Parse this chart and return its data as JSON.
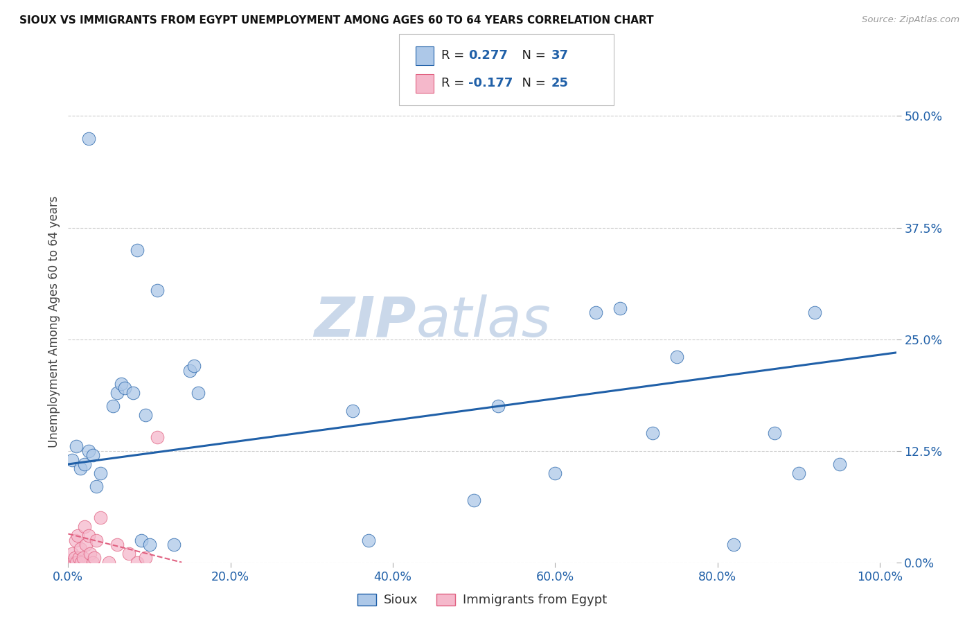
{
  "title": "SIOUX VS IMMIGRANTS FROM EGYPT UNEMPLOYMENT AMONG AGES 60 TO 64 YEARS CORRELATION CHART",
  "source": "Source: ZipAtlas.com",
  "xlabel_ticks": [
    "0.0%",
    "20.0%",
    "40.0%",
    "60.0%",
    "80.0%",
    "100.0%"
  ],
  "xlabel_vals": [
    0.0,
    0.2,
    0.4,
    0.6,
    0.8,
    1.0
  ],
  "ylabel_ticks": [
    "0.0%",
    "12.5%",
    "25.0%",
    "37.5%",
    "50.0%"
  ],
  "ylabel_vals": [
    0.0,
    0.125,
    0.25,
    0.375,
    0.5
  ],
  "ylabel_label": "Unemployment Among Ages 60 to 64 years",
  "legend_label1": "Sioux",
  "legend_label2": "Immigrants from Egypt",
  "R1": "0.277",
  "N1": "37",
  "R2": "-0.177",
  "N2": "25",
  "color_blue": "#adc8e8",
  "color_pink": "#f5b8cb",
  "line_blue": "#2060a8",
  "line_pink": "#e06080",
  "watermark_zip": "ZIP",
  "watermark_atlas": "atlas",
  "sioux_x": [
    0.005,
    0.01,
    0.015,
    0.02,
    0.025,
    0.03,
    0.035,
    0.04,
    0.055,
    0.06,
    0.065,
    0.07,
    0.08,
    0.09,
    0.095,
    0.1,
    0.11,
    0.13,
    0.15,
    0.155,
    0.16,
    0.35,
    0.37,
    0.5,
    0.53,
    0.6,
    0.65,
    0.68,
    0.72,
    0.75,
    0.82,
    0.87,
    0.9,
    0.92,
    0.95,
    0.025,
    0.085
  ],
  "sioux_y": [
    0.115,
    0.13,
    0.105,
    0.11,
    0.125,
    0.12,
    0.085,
    0.1,
    0.175,
    0.19,
    0.2,
    0.195,
    0.19,
    0.025,
    0.165,
    0.02,
    0.305,
    0.02,
    0.215,
    0.22,
    0.19,
    0.17,
    0.025,
    0.07,
    0.175,
    0.1,
    0.28,
    0.285,
    0.145,
    0.23,
    0.02,
    0.145,
    0.1,
    0.28,
    0.11,
    0.475,
    0.35
  ],
  "egypt_x": [
    0.003,
    0.005,
    0.007,
    0.008,
    0.009,
    0.01,
    0.012,
    0.013,
    0.015,
    0.016,
    0.018,
    0.02,
    0.022,
    0.025,
    0.027,
    0.03,
    0.032,
    0.035,
    0.04,
    0.05,
    0.06,
    0.075,
    0.085,
    0.095,
    0.11
  ],
  "egypt_y": [
    0.0,
    0.01,
    0.0,
    0.005,
    0.025,
    0.0,
    0.03,
    0.005,
    0.015,
    0.0,
    0.005,
    0.04,
    0.02,
    0.03,
    0.01,
    0.0,
    0.005,
    0.025,
    0.05,
    0.0,
    0.02,
    0.01,
    0.0,
    0.005,
    0.14
  ],
  "xlim": [
    0.0,
    1.02
  ],
  "ylim": [
    0.0,
    0.54
  ],
  "blue_line_x": [
    0.0,
    1.02
  ],
  "blue_line_y": [
    0.11,
    0.235
  ],
  "pink_line_x": [
    0.0,
    0.14
  ],
  "pink_line_y": [
    0.032,
    0.0
  ]
}
